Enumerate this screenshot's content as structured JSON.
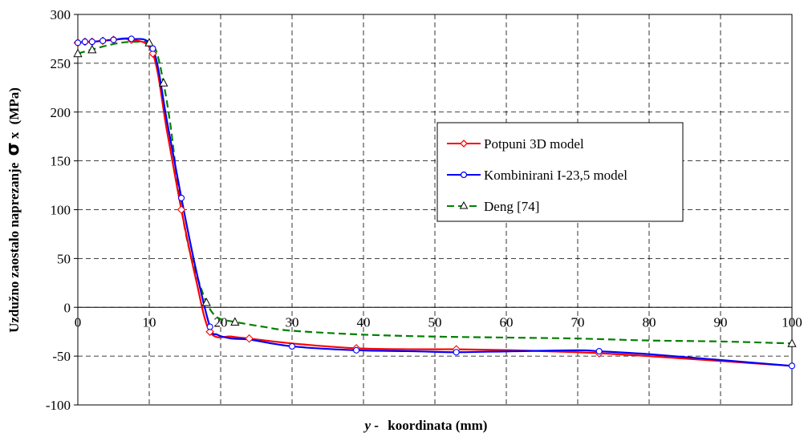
{
  "chart_data": {
    "type": "line",
    "xlabel_var": "y -",
    "xlabel_rest": "koordinata (mm)",
    "ylabel_main": "Uzdužno zaostalo naprezanje",
    "ylabel_symbol": "σ",
    "ylabel_sub": "x",
    "ylabel_unit": "(MPa)",
    "xlim": [
      0,
      100
    ],
    "ylim": [
      -100,
      300
    ],
    "xticks": [
      0,
      10,
      20,
      30,
      40,
      50,
      60,
      70,
      80,
      90,
      100
    ],
    "yticks": [
      -100,
      -50,
      0,
      50,
      100,
      150,
      200,
      250,
      300
    ],
    "grid": true,
    "legend_position": "right-center",
    "series": [
      {
        "name": "Potpuni 3D model",
        "color": "#ff0000",
        "dash": "solid",
        "marker": "diamond",
        "x": [
          0,
          1,
          2,
          3.5,
          5,
          7.5,
          10.5,
          12.5,
          14.5,
          16.5,
          18.5,
          21.5,
          24,
          30,
          39,
          47,
          53,
          61,
          70,
          73,
          80,
          90,
          100
        ],
        "y": [
          271,
          272,
          272,
          273,
          274,
          274,
          260,
          180,
          100,
          30,
          -25,
          -30,
          -32,
          -37,
          -42,
          -43,
          -43,
          -44,
          -46,
          -47,
          -50,
          -55,
          -60
        ],
        "marker_x": [
          0,
          1,
          2,
          3.5,
          5,
          7.5,
          10.5,
          14.5,
          18.5,
          24,
          39,
          53,
          73
        ],
        "marker_y": [
          271,
          272,
          272,
          273,
          274,
          274,
          260,
          100,
          -25,
          -32,
          -42,
          -43,
          -47
        ]
      },
      {
        "name": "Kombinirani I-23,5 model",
        "color": "#0000ff",
        "dash": "solid",
        "marker": "circle",
        "x": [
          0,
          1,
          2,
          3.5,
          5,
          7.5,
          10.5,
          12.5,
          14.5,
          16.5,
          18.5,
          19.5,
          21.5,
          24,
          30,
          39,
          47,
          53,
          61,
          70,
          73,
          80,
          90,
          100
        ],
        "y": [
          271,
          272,
          272,
          273,
          274,
          275,
          265,
          190,
          112,
          40,
          -20,
          -28,
          -32,
          -33,
          -40,
          -44,
          -45,
          -46,
          -45,
          -44,
          -45,
          -48,
          -54,
          -60
        ],
        "marker_x": [
          0,
          1,
          2,
          3.5,
          5,
          7.5,
          10.5,
          14.5,
          18.5,
          30,
          39,
          53,
          73,
          100
        ],
        "marker_y": [
          271,
          272,
          272,
          273,
          274,
          275,
          265,
          112,
          -20,
          -40,
          -44,
          -46,
          -45,
          -60
        ]
      },
      {
        "name": "Deng [74]",
        "color": "#008000",
        "dash": "dashed",
        "marker": "triangle",
        "x": [
          0,
          2,
          4,
          6,
          8,
          10,
          11,
          12,
          13,
          14,
          15,
          16,
          17,
          18,
          19,
          20,
          22,
          26,
          30,
          40,
          50,
          60,
          70,
          80,
          90,
          100
        ],
        "y": [
          260,
          264,
          268,
          271,
          272,
          271,
          262,
          230,
          185,
          125,
          80,
          48,
          25,
          5,
          -7,
          -12,
          -15,
          -20,
          -24,
          -28,
          -30,
          -31,
          -32,
          -34,
          -35,
          -37
        ],
        "marker_x": [
          0,
          2,
          10,
          12,
          18,
          22,
          100
        ],
        "marker_y": [
          260,
          264,
          271,
          230,
          5,
          -15,
          -37
        ]
      }
    ]
  }
}
